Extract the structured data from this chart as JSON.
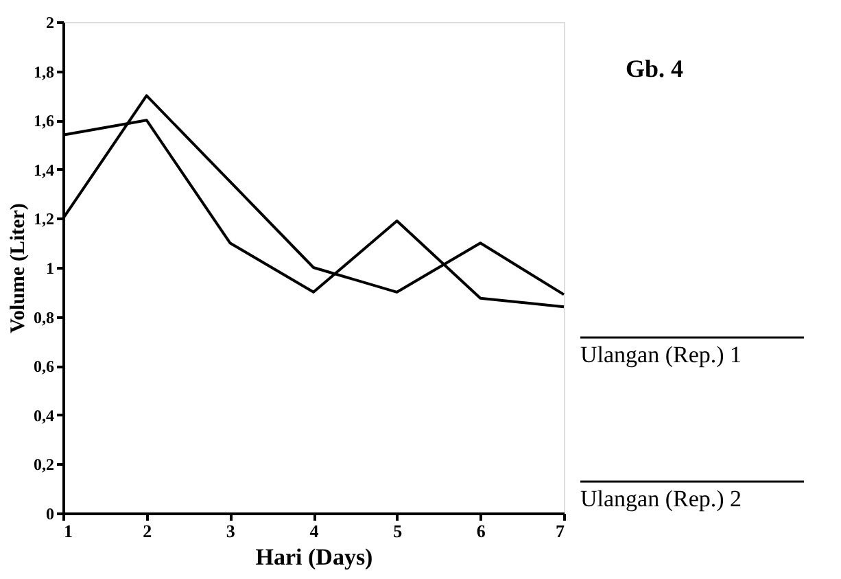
{
  "chart_data": {
    "type": "line",
    "title": "Gb. 4",
    "xlabel": "Hari (Days)",
    "ylabel": "Volume (Liter)",
    "x": [
      1,
      2,
      3,
      4,
      5,
      6,
      7
    ],
    "series": [
      {
        "name": "Ulangan (Rep.) 1",
        "color": "#000000",
        "values": [
          1.2,
          1.7,
          1.35,
          1.0,
          0.9,
          1.1,
          0.89
        ]
      },
      {
        "name": "Ulangan (Rep.) 2",
        "color": "#000000",
        "values": [
          1.54,
          1.6,
          1.1,
          0.9,
          1.19,
          0.875,
          0.84
        ]
      }
    ],
    "xlim": [
      1,
      7
    ],
    "xticks": [
      1,
      2,
      3,
      4,
      5,
      6,
      7
    ],
    "ylim": [
      0,
      2
    ],
    "yticks": [
      {
        "value": 0,
        "label": "0"
      },
      {
        "value": 0.2,
        "label": "0,2"
      },
      {
        "value": 0.4,
        "label": "0,4"
      },
      {
        "value": 0.6,
        "label": "0,6"
      },
      {
        "value": 0.8,
        "label": "0,8"
      },
      1,
      {
        "value": 1.2,
        "label": "1,2"
      },
      {
        "value": 1.4,
        "label": "1,4"
      },
      {
        "value": 1.6,
        "label": "1,6"
      },
      {
        "value": 1.8,
        "label": "1,8"
      },
      2
    ],
    "grid": false,
    "legend": "right",
    "marker": "none",
    "line_style": "solid"
  }
}
